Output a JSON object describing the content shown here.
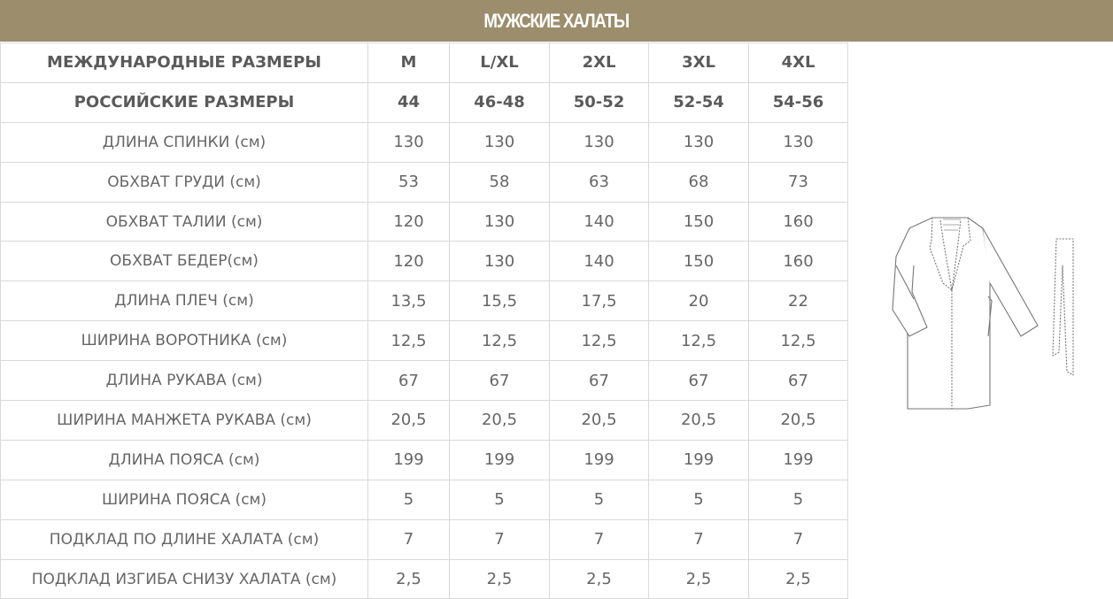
{
  "title": "МУЖСКИЕ ХАЛАТЫ",
  "table": {
    "rows": [
      {
        "label": "МЕЖДУНАРОДНЫЕ РАЗМЕРЫ",
        "bold": true,
        "values": [
          "M",
          "L/XL",
          "2XL",
          "3XL",
          "4XL"
        ]
      },
      {
        "label": "РОССИЙСКИЕ РАЗМЕРЫ",
        "bold": true,
        "values": [
          "44",
          "46-48",
          "50-52",
          "52-54",
          "54-56"
        ]
      },
      {
        "label": "ДЛИНА СПИНКИ (см)",
        "values": [
          "130",
          "130",
          "130",
          "130",
          "130"
        ]
      },
      {
        "label": "ОБХВАТ ГРУДИ (см)",
        "values": [
          "53",
          "58",
          "63",
          "68",
          "73"
        ]
      },
      {
        "label": "ОБХВАТ ТАЛИИ (см)",
        "values": [
          "120",
          "130",
          "140",
          "150",
          "160"
        ]
      },
      {
        "label": "ОБХВАТ БЕДЕР(см)",
        "values": [
          "120",
          "130",
          "140",
          "150",
          "160"
        ]
      },
      {
        "label": "ДЛИНА ПЛЕЧ (см)",
        "values": [
          "13,5",
          "15,5",
          "17,5",
          "20",
          "22"
        ]
      },
      {
        "label": "ШИРИНА ВОРОТНИКА (см)",
        "values": [
          "12,5",
          "12,5",
          "12,5",
          "12,5",
          "12,5"
        ]
      },
      {
        "label": "ДЛИНА РУКАВА (см)",
        "values": [
          "67",
          "67",
          "67",
          "67",
          "67"
        ]
      },
      {
        "label": "ШИРИНА МАНЖЕТА РУКАВА (см)",
        "values": [
          "20,5",
          "20,5",
          "20,5",
          "20,5",
          "20,5"
        ]
      },
      {
        "label": "ДЛИНА ПОЯСА (см)",
        "values": [
          "199",
          "199",
          "199",
          "199",
          "199"
        ]
      },
      {
        "label": "ШИРИНА ПОЯСА (см)",
        "values": [
          "5",
          "5",
          "5",
          "5",
          "5"
        ]
      },
      {
        "label": "ПОДКЛАД ПО ДЛИНЕ ХАЛАТА (см)",
        "values": [
          "7",
          "7",
          "7",
          "7",
          "7"
        ]
      },
      {
        "label": "ПОДКЛАД ИЗГИБА СНИЗУ ХАЛАТА (см)",
        "values": [
          "2,5",
          "2,5",
          "2,5",
          "2,5",
          "2,5"
        ]
      }
    ]
  },
  "image": {
    "icon": "robe-and-belt-drawing"
  },
  "colors": {
    "header_bg": "#9c8d6c",
    "border": "#d9d9d9",
    "text": "#666666"
  }
}
